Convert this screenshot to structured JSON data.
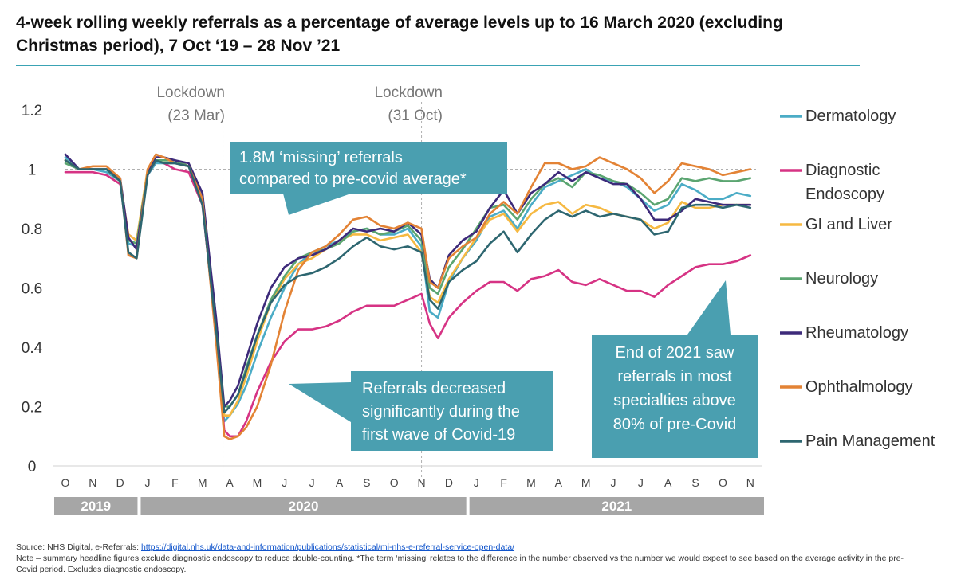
{
  "title": "4-week rolling weekly referrals as a percentage of average levels up to 16 March 2020 (excluding Christmas period), 7 Oct ‘19 – 28 Nov ’21",
  "footer": {
    "source_prefix": "Source: NHS Digital, e-Referrals: ",
    "source_link": "https://digital.nhs.uk/data-and-information/publications/statistical/mi-nhs-e-referral-service-open-data/",
    "note": "Note – summary headline figures exclude diagnostic endoscopy to reduce double-counting. *The term ‘missing’ relates to the difference in the number observed vs the number we would expect to see based on the average activity in the pre-Covid period. Excludes diagnostic endoscopy."
  },
  "annotations": {
    "lockdown1": [
      "Lockdown",
      "(23 Mar)"
    ],
    "lockdown2": [
      "Lockdown",
      "(31 Oct)"
    ],
    "missing": [
      "1.8M ‘missing’ referrals",
      "compared to pre-covid average*"
    ],
    "decrease": [
      "Referrals decreased",
      "significantly during the",
      "first wave of Covid-19"
    ],
    "end2021": [
      "End of 2021 saw",
      "referrals in most",
      "specialties above",
      "80% of pre-Covid"
    ]
  },
  "colors": {
    "callout": "#4a9fb0",
    "year_band": "#a6a6a6"
  },
  "chart_data": {
    "type": "line",
    "title": "",
    "xlabel": "",
    "ylabel": "",
    "ylim": [
      0,
      1.2
    ],
    "yticks": [
      "0",
      "0.2",
      "0.4",
      "0.6",
      "0.8",
      "1",
      "1.2"
    ],
    "reference_line": 1,
    "grid": false,
    "legend": "right",
    "month_labels": [
      "O",
      "N",
      "D",
      "J",
      "F",
      "M",
      "A",
      "M",
      "J",
      "J",
      "A",
      "S",
      "O",
      "N",
      "D",
      "J",
      "F",
      "M",
      "A",
      "M",
      "J",
      "J",
      "A",
      "S",
      "O",
      "N"
    ],
    "years": [
      {
        "label": "2019",
        "from_month": 0,
        "to_month": 3
      },
      {
        "label": "2020",
        "from_month": 3,
        "to_month": 15
      },
      {
        "label": "2021",
        "from_month": 15,
        "to_month": 26
      }
    ],
    "lockdowns": [
      5.75,
      13.0
    ],
    "x_month_index": [
      0,
      0.5,
      1,
      1.5,
      2,
      2.3,
      2.6,
      3,
      3.3,
      3.6,
      4,
      4.5,
      5,
      5.5,
      5.8,
      6,
      6.3,
      6.6,
      7,
      7.5,
      8,
      8.5,
      9,
      9.5,
      10,
      10.5,
      11,
      11.5,
      12,
      12.5,
      13,
      13.3,
      13.6,
      14,
      14.5,
      15,
      15.5,
      16,
      16.5,
      17,
      17.5,
      18,
      18.5,
      19,
      19.5,
      20,
      20.5,
      21,
      21.5,
      22,
      22.5,
      23,
      23.5,
      24,
      24.5,
      25
    ],
    "series": [
      {
        "name": "Dermatology",
        "color": "#4bacc6",
        "values": [
          1.04,
          1.0,
          1.0,
          0.99,
          0.96,
          0.75,
          0.74,
          0.98,
          1.02,
          1.02,
          1.02,
          1.01,
          0.9,
          0.5,
          0.15,
          0.17,
          0.21,
          0.27,
          0.38,
          0.5,
          0.6,
          0.68,
          0.72,
          0.74,
          0.76,
          0.79,
          0.8,
          0.78,
          0.78,
          0.8,
          0.74,
          0.52,
          0.5,
          0.62,
          0.7,
          0.76,
          0.84,
          0.86,
          0.8,
          0.88,
          0.94,
          0.96,
          0.98,
          1.0,
          0.97,
          0.96,
          0.94,
          0.9,
          0.86,
          0.88,
          0.95,
          0.93,
          0.9,
          0.9,
          0.92,
          0.91
        ]
      },
      {
        "name": "Diagnostic Endoscopy",
        "color": "#d63384",
        "values": [
          0.99,
          0.99,
          0.99,
          0.98,
          0.95,
          0.78,
          0.76,
          0.98,
          1.03,
          1.02,
          1.0,
          0.99,
          0.88,
          0.45,
          0.12,
          0.1,
          0.1,
          0.15,
          0.25,
          0.35,
          0.42,
          0.46,
          0.46,
          0.47,
          0.49,
          0.52,
          0.54,
          0.54,
          0.54,
          0.56,
          0.58,
          0.48,
          0.43,
          0.5,
          0.55,
          0.59,
          0.62,
          0.62,
          0.59,
          0.63,
          0.64,
          0.66,
          0.62,
          0.61,
          0.63,
          0.61,
          0.59,
          0.59,
          0.57,
          0.61,
          0.64,
          0.67,
          0.68,
          0.68,
          0.69,
          0.71
        ]
      },
      {
        "name": "GI and Liver",
        "color": "#f6b942",
        "values": [
          1.03,
          1.0,
          1.0,
          1.0,
          0.96,
          0.78,
          0.76,
          1.0,
          1.03,
          1.03,
          1.03,
          1.01,
          0.9,
          0.45,
          0.17,
          0.17,
          0.22,
          0.3,
          0.42,
          0.55,
          0.63,
          0.68,
          0.7,
          0.73,
          0.76,
          0.78,
          0.78,
          0.76,
          0.77,
          0.78,
          0.72,
          0.57,
          0.55,
          0.63,
          0.7,
          0.77,
          0.83,
          0.85,
          0.79,
          0.85,
          0.88,
          0.89,
          0.85,
          0.88,
          0.87,
          0.85,
          0.84,
          0.83,
          0.8,
          0.82,
          0.89,
          0.87,
          0.87,
          0.88,
          0.88,
          0.88
        ]
      },
      {
        "name": "Neurology",
        "color": "#5ba571",
        "values": [
          1.02,
          1.0,
          1.0,
          1.0,
          0.96,
          0.76,
          0.75,
          0.99,
          1.03,
          1.03,
          1.03,
          1.01,
          0.9,
          0.48,
          0.2,
          0.2,
          0.24,
          0.33,
          0.44,
          0.56,
          0.64,
          0.7,
          0.72,
          0.73,
          0.75,
          0.79,
          0.8,
          0.78,
          0.79,
          0.81,
          0.76,
          0.6,
          0.58,
          0.67,
          0.73,
          0.8,
          0.87,
          0.88,
          0.83,
          0.9,
          0.95,
          0.97,
          0.94,
          0.99,
          0.98,
          0.96,
          0.95,
          0.92,
          0.88,
          0.9,
          0.97,
          0.96,
          0.97,
          0.96,
          0.96,
          0.97
        ]
      },
      {
        "name": "Rheumatology",
        "color": "#3d2a7a",
        "values": [
          1.05,
          1.0,
          1.0,
          1.0,
          0.97,
          0.77,
          0.73,
          0.99,
          1.04,
          1.04,
          1.03,
          1.02,
          0.92,
          0.5,
          0.2,
          0.22,
          0.27,
          0.36,
          0.48,
          0.6,
          0.67,
          0.7,
          0.71,
          0.73,
          0.76,
          0.8,
          0.79,
          0.8,
          0.79,
          0.82,
          0.78,
          0.63,
          0.6,
          0.71,
          0.76,
          0.79,
          0.87,
          0.93,
          0.85,
          0.92,
          0.95,
          0.99,
          0.96,
          0.99,
          0.97,
          0.95,
          0.95,
          0.9,
          0.83,
          0.83,
          0.86,
          0.9,
          0.89,
          0.88,
          0.88,
          0.88
        ]
      },
      {
        "name": "Ophthalmology",
        "color": "#e38335",
        "values": [
          1.03,
          1.0,
          1.01,
          1.01,
          0.97,
          0.71,
          0.7,
          1.0,
          1.05,
          1.04,
          1.02,
          1.01,
          0.9,
          0.42,
          0.1,
          0.09,
          0.1,
          0.13,
          0.2,
          0.34,
          0.52,
          0.66,
          0.72,
          0.74,
          0.78,
          0.83,
          0.84,
          0.81,
          0.8,
          0.82,
          0.8,
          0.62,
          0.6,
          0.7,
          0.74,
          0.77,
          0.85,
          0.89,
          0.85,
          0.94,
          1.02,
          1.02,
          1.0,
          1.01,
          1.04,
          1.02,
          1.0,
          0.97,
          0.92,
          0.96,
          1.02,
          1.01,
          1.0,
          0.98,
          0.99,
          1.0
        ]
      },
      {
        "name": "Pain Management",
        "color": "#2d6670",
        "values": [
          1.03,
          1.0,
          1.0,
          1.0,
          0.96,
          0.72,
          0.7,
          0.98,
          1.03,
          1.02,
          1.02,
          1.01,
          0.88,
          0.46,
          0.18,
          0.2,
          0.24,
          0.32,
          0.44,
          0.55,
          0.61,
          0.64,
          0.65,
          0.67,
          0.7,
          0.74,
          0.77,
          0.74,
          0.73,
          0.74,
          0.72,
          0.56,
          0.53,
          0.62,
          0.66,
          0.69,
          0.75,
          0.79,
          0.72,
          0.78,
          0.83,
          0.86,
          0.84,
          0.86,
          0.84,
          0.85,
          0.84,
          0.83,
          0.78,
          0.79,
          0.87,
          0.88,
          0.88,
          0.87,
          0.88,
          0.87
        ]
      }
    ]
  }
}
